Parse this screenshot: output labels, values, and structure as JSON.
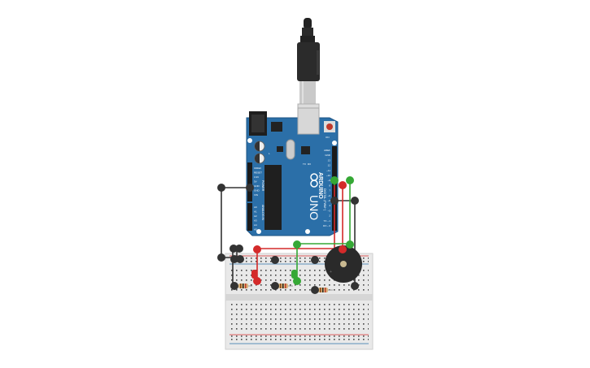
{
  "canvas": {
    "background": "#ffffff"
  },
  "board": {
    "brand_text": "ARDUINO",
    "model_text": "UNO",
    "section_digital": "DIGITAL (PWM~)",
    "section_analog": "ANALOG IN",
    "section_power": "POWER",
    "tx_label": "TX",
    "rx_label": "RX",
    "l_label": "L",
    "on_label": "ON",
    "power_pins": [
      "IOREF",
      "RESET",
      "3.3V",
      "5V",
      "GND",
      "GND",
      "VIN"
    ],
    "analog_pins": [
      "A0",
      "A1",
      "A2",
      "A3",
      "A4",
      "A5"
    ],
    "digital_pins": [
      "AREF",
      "GND",
      "13",
      "12",
      "~11",
      "~10",
      "~9",
      "8",
      "7",
      "~6",
      "~5",
      "4",
      "~3",
      "2",
      "TX→1",
      "RX←0"
    ],
    "color": "#2b6fa8"
  },
  "colors": {
    "wire_black": "#333333",
    "wire_red": "#d42a2a",
    "wire_green": "#35a835",
    "breadboard": "#e9e9e9",
    "buzzer": "#2a2a2a",
    "cable": "#222222"
  },
  "components": {
    "usb_cable": "usb-cable",
    "breadboard": "breadboard",
    "buzzer": "piezo-buzzer",
    "leds": [
      "red-led",
      "red-led",
      "green-led"
    ],
    "resistors": 3
  }
}
